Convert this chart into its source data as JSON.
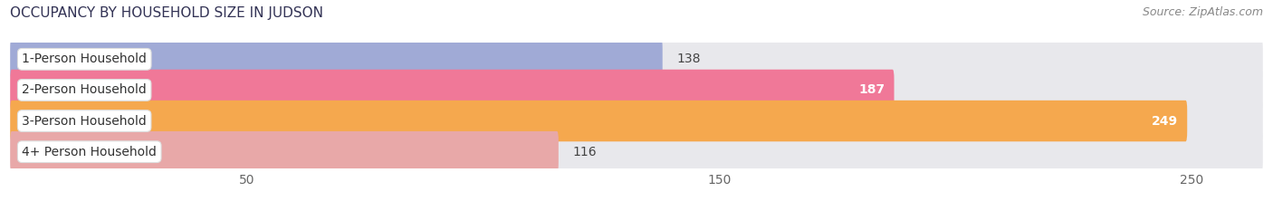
{
  "title": "OCCUPANCY BY HOUSEHOLD SIZE IN JUDSON",
  "source": "Source: ZipAtlas.com",
  "categories": [
    "1-Person Household",
    "2-Person Household",
    "3-Person Household",
    "4+ Person Household"
  ],
  "values": [
    138,
    187,
    249,
    116
  ],
  "bar_colors": [
    "#a0aad6",
    "#f07898",
    "#f5a84e",
    "#e8a8a8"
  ],
  "bar_bg_color": "#e8e8ec",
  "xlim": [
    0,
    265
  ],
  "xticks": [
    50,
    150,
    250
  ],
  "tick_fontsize": 10,
  "label_fontsize": 10,
  "title_fontsize": 11,
  "source_fontsize": 9,
  "value_color_inside": [
    "#444444",
    "#ffffff",
    "#ffffff",
    "#444444"
  ],
  "fig_bg_color": "#ffffff"
}
